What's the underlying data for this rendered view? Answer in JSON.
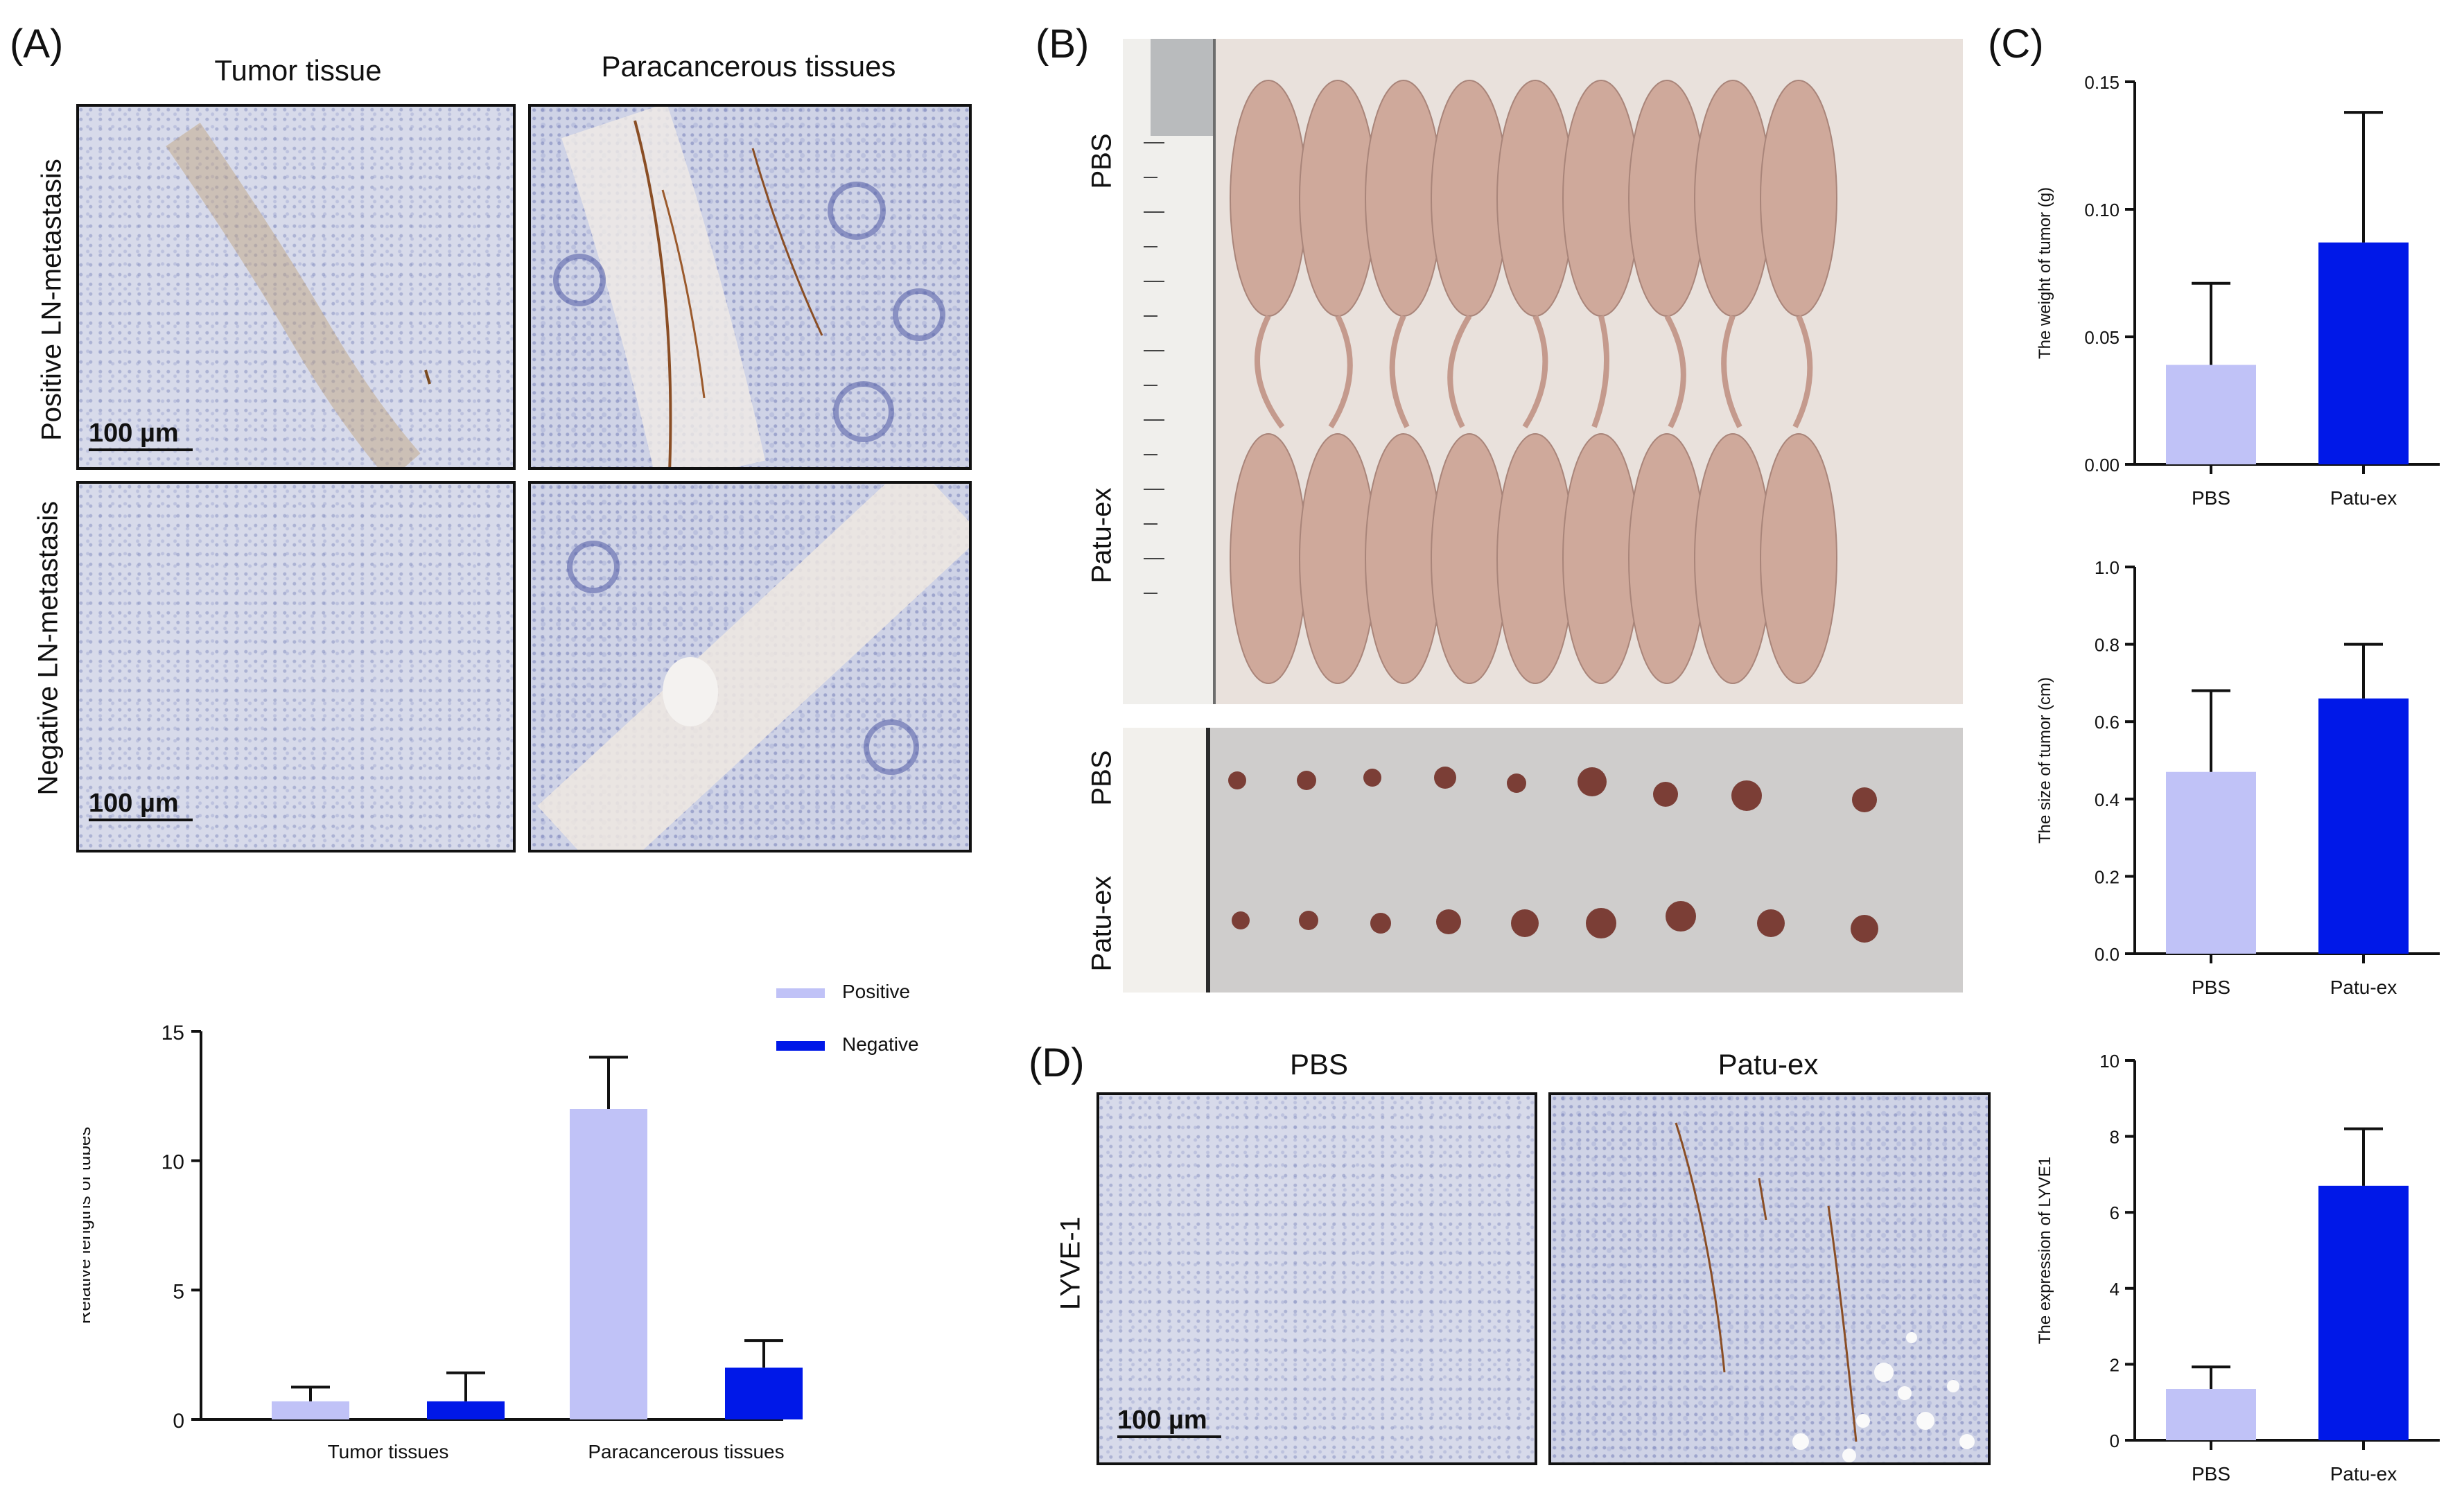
{
  "panels": {
    "A": {
      "label": "(A)",
      "col_titles": [
        "Tumor tissue",
        "Paracancerous tissues"
      ],
      "row_labels": [
        "Positive LN-metastasis",
        "Negative LN-metastasis"
      ],
      "scale_bar": "100 µm"
    },
    "B": {
      "label": "(B)",
      "top_labels": [
        "PBS",
        "Patu-ex"
      ],
      "bottom_labels": [
        "PBS",
        "Patu-ex"
      ]
    },
    "C": {
      "label": "(C)"
    },
    "D": {
      "label": "(D)",
      "col_titles": [
        "PBS",
        "Patu-ex"
      ],
      "row_label": "LYVE-1",
      "scale_bar": "100 µm"
    }
  },
  "colors": {
    "light": "#c0c2f7",
    "dark": "#0018e8",
    "axis": "#111111"
  },
  "chart_data": [
    {
      "id": "A-bar",
      "type": "bar",
      "categories": [
        "Tumor tissues",
        "Paracancerous tissues"
      ],
      "series": [
        {
          "name": "Positive",
          "values": [
            0.7,
            12.0
          ],
          "errors": [
            0.55,
            2.0
          ]
        },
        {
          "name": "Negative",
          "values": [
            0.7,
            2.0
          ],
          "errors": [
            1.1,
            1.05
          ]
        }
      ],
      "ylabel": "Relative lengths of tubes",
      "ylim": [
        0,
        15
      ],
      "yticks": [
        "0",
        "5",
        "10",
        "15"
      ],
      "legend": "top-right"
    },
    {
      "id": "C-weight",
      "type": "bar",
      "categories": [
        "PBS",
        "Patu-ex"
      ],
      "values": [
        0.039,
        0.087
      ],
      "errors": [
        0.032,
        0.051
      ],
      "ylabel": "The weight of tumor (g)",
      "ylim": [
        0,
        0.15
      ],
      "yticks": [
        "0.00",
        "0.05",
        "0.10",
        "0.15"
      ]
    },
    {
      "id": "C-size",
      "type": "bar",
      "categories": [
        "PBS",
        "Patu-ex"
      ],
      "values": [
        0.47,
        0.66
      ],
      "errors": [
        0.21,
        0.14
      ],
      "ylabel": "The size of tumor (cm)",
      "ylim": [
        0,
        1.0
      ],
      "yticks": [
        "0.0",
        "0.2",
        "0.4",
        "0.6",
        "0.8",
        "1.0"
      ]
    },
    {
      "id": "D-lyve",
      "type": "bar",
      "categories": [
        "PBS",
        "Patu-ex"
      ],
      "values": [
        1.35,
        6.7
      ],
      "errors": [
        0.58,
        1.5
      ],
      "ylabel": "The expression of LYVE1",
      "ylim": [
        0,
        10
      ],
      "yticks": [
        "0",
        "2",
        "4",
        "6",
        "8",
        "10"
      ]
    }
  ]
}
